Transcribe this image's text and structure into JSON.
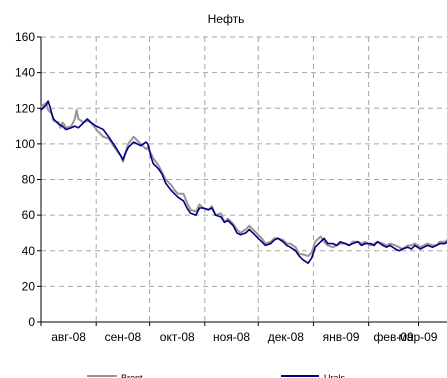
{
  "chart_data": {
    "type": "line",
    "title": "Нефть",
    "xlabel": "",
    "ylabel": "",
    "ylim": [
      0,
      160
    ],
    "yticks": [
      0,
      20,
      40,
      60,
      80,
      100,
      120,
      140,
      160
    ],
    "xticks": [
      "авг-08",
      "сен-08",
      "окт-08",
      "ноя-08",
      "дек-08",
      "янв-09",
      "фев-09",
      "мар-09"
    ],
    "xlim": [
      "2008-08-01",
      "2009-03-17"
    ],
    "grid": true,
    "legend_position": "bottom",
    "colors": {
      "Brent": "#969696",
      "Urals": "#000080"
    },
    "series": [
      {
        "name": "Brent",
        "points": [
          [
            "2008-08-01",
            121
          ],
          [
            "2008-08-04",
            123
          ],
          [
            "2008-08-05",
            119
          ],
          [
            "2008-08-07",
            117
          ],
          [
            "2008-08-08",
            113
          ],
          [
            "2008-08-11",
            112
          ],
          [
            "2008-08-12",
            109
          ],
          [
            "2008-08-13",
            112
          ],
          [
            "2008-08-14",
            111
          ],
          [
            "2008-08-15",
            109
          ],
          [
            "2008-08-18",
            110
          ],
          [
            "2008-08-19",
            112
          ],
          [
            "2008-08-20",
            114
          ],
          [
            "2008-08-21",
            119
          ],
          [
            "2008-08-22",
            114
          ],
          [
            "2008-08-25",
            112
          ],
          [
            "2008-08-27",
            113
          ],
          [
            "2008-08-29",
            112
          ],
          [
            "2008-09-02",
            107
          ],
          [
            "2008-09-04",
            105
          ],
          [
            "2008-09-05",
            104
          ],
          [
            "2008-09-08",
            103
          ],
          [
            "2008-09-10",
            100
          ],
          [
            "2008-09-12",
            97
          ],
          [
            "2008-09-15",
            93
          ],
          [
            "2008-09-16",
            90
          ],
          [
            "2008-09-17",
            93
          ],
          [
            "2008-09-18",
            97
          ],
          [
            "2008-09-19",
            100
          ],
          [
            "2008-09-22",
            104
          ],
          [
            "2008-09-23",
            103
          ],
          [
            "2008-09-25",
            101
          ],
          [
            "2008-09-26",
            100
          ],
          [
            "2008-09-29",
            97
          ],
          [
            "2008-09-30",
            98
          ],
          [
            "2008-10-02",
            94
          ],
          [
            "2008-10-03",
            92
          ],
          [
            "2008-10-06",
            88
          ],
          [
            "2008-10-08",
            84
          ],
          [
            "2008-10-10",
            80
          ],
          [
            "2008-10-13",
            77
          ],
          [
            "2008-10-15",
            74
          ],
          [
            "2008-10-17",
            72
          ],
          [
            "2008-10-20",
            72
          ],
          [
            "2008-10-22",
            67
          ],
          [
            "2008-10-24",
            63
          ],
          [
            "2008-10-27",
            62
          ],
          [
            "2008-10-29",
            66
          ],
          [
            "2008-10-31",
            64
          ],
          [
            "2008-11-03",
            63
          ],
          [
            "2008-11-05",
            65
          ],
          [
            "2008-11-07",
            60
          ],
          [
            "2008-11-10",
            61
          ],
          [
            "2008-11-12",
            56
          ],
          [
            "2008-11-14",
            58
          ],
          [
            "2008-11-17",
            55
          ],
          [
            "2008-11-19",
            52
          ],
          [
            "2008-11-21",
            50
          ],
          [
            "2008-11-24",
            52
          ],
          [
            "2008-11-26",
            54
          ],
          [
            "2008-11-28",
            52
          ],
          [
            "2008-12-01",
            49
          ],
          [
            "2008-12-03",
            47
          ],
          [
            "2008-12-05",
            44
          ],
          [
            "2008-12-08",
            45
          ],
          [
            "2008-12-10",
            47
          ],
          [
            "2008-12-12",
            47
          ],
          [
            "2008-12-15",
            46
          ],
          [
            "2008-12-17",
            44
          ],
          [
            "2008-12-19",
            44
          ],
          [
            "2008-12-22",
            42
          ],
          [
            "2008-12-24",
            38
          ],
          [
            "2008-12-26",
            38
          ],
          [
            "2008-12-29",
            37
          ],
          [
            "2008-12-31",
            39
          ],
          [
            "2009-01-02",
            45
          ],
          [
            "2009-01-05",
            48
          ],
          [
            "2009-01-07",
            45
          ],
          [
            "2009-01-09",
            43
          ],
          [
            "2009-01-12",
            42
          ],
          [
            "2009-01-14",
            43
          ],
          [
            "2009-01-16",
            44
          ],
          [
            "2009-01-19",
            44
          ],
          [
            "2009-01-21",
            43
          ],
          [
            "2009-01-23",
            45
          ],
          [
            "2009-01-26",
            45
          ],
          [
            "2009-01-28",
            44
          ],
          [
            "2009-01-30",
            45
          ],
          [
            "2009-02-02",
            43
          ],
          [
            "2009-02-04",
            44
          ],
          [
            "2009-02-06",
            45
          ],
          [
            "2009-02-09",
            44
          ],
          [
            "2009-02-11",
            43
          ],
          [
            "2009-02-13",
            44
          ],
          [
            "2009-02-16",
            43
          ],
          [
            "2009-02-18",
            42
          ],
          [
            "2009-02-20",
            41
          ],
          [
            "2009-02-23",
            43
          ],
          [
            "2009-02-25",
            43
          ],
          [
            "2009-02-27",
            44
          ],
          [
            "2009-03-02",
            42
          ],
          [
            "2009-03-04",
            43
          ],
          [
            "2009-03-06",
            44
          ],
          [
            "2009-03-09",
            43
          ],
          [
            "2009-03-11",
            43
          ],
          [
            "2009-03-13",
            45
          ],
          [
            "2009-03-16",
            45
          ],
          [
            "2009-03-17",
            46
          ]
        ]
      },
      {
        "name": "Urals",
        "points": [
          [
            "2008-08-01",
            119
          ],
          [
            "2008-08-04",
            122
          ],
          [
            "2008-08-05",
            124
          ],
          [
            "2008-08-06",
            121
          ],
          [
            "2008-08-07",
            117
          ],
          [
            "2008-08-08",
            114
          ],
          [
            "2008-08-11",
            111
          ],
          [
            "2008-08-13",
            110
          ],
          [
            "2008-08-15",
            108
          ],
          [
            "2008-08-18",
            109
          ],
          [
            "2008-08-20",
            110
          ],
          [
            "2008-08-22",
            109
          ],
          [
            "2008-08-25",
            112
          ],
          [
            "2008-08-27",
            114
          ],
          [
            "2008-08-29",
            112
          ],
          [
            "2008-09-01",
            110
          ],
          [
            "2008-09-03",
            109
          ],
          [
            "2008-09-05",
            108
          ],
          [
            "2008-09-08",
            104
          ],
          [
            "2008-09-10",
            101
          ],
          [
            "2008-09-12",
            98
          ],
          [
            "2008-09-15",
            93
          ],
          [
            "2008-09-16",
            91
          ],
          [
            "2008-09-17",
            94
          ],
          [
            "2008-09-19",
            98
          ],
          [
            "2008-09-22",
            101
          ],
          [
            "2008-09-24",
            100
          ],
          [
            "2008-09-26",
            99
          ],
          [
            "2008-09-29",
            101
          ],
          [
            "2008-09-30",
            100
          ],
          [
            "2008-10-02",
            92
          ],
          [
            "2008-10-03",
            89
          ],
          [
            "2008-10-06",
            86
          ],
          [
            "2008-10-08",
            83
          ],
          [
            "2008-10-10",
            78
          ],
          [
            "2008-10-13",
            74
          ],
          [
            "2008-10-15",
            72
          ],
          [
            "2008-10-17",
            70
          ],
          [
            "2008-10-20",
            68
          ],
          [
            "2008-10-22",
            64
          ],
          [
            "2008-10-24",
            61
          ],
          [
            "2008-10-27",
            60
          ],
          [
            "2008-10-29",
            64
          ],
          [
            "2008-10-31",
            64
          ],
          [
            "2008-11-03",
            63
          ],
          [
            "2008-11-05",
            64
          ],
          [
            "2008-11-07",
            60
          ],
          [
            "2008-11-10",
            59
          ],
          [
            "2008-11-12",
            56
          ],
          [
            "2008-11-14",
            57
          ],
          [
            "2008-11-17",
            54
          ],
          [
            "2008-11-19",
            50
          ],
          [
            "2008-11-21",
            49
          ],
          [
            "2008-11-24",
            50
          ],
          [
            "2008-11-26",
            52
          ],
          [
            "2008-11-28",
            50
          ],
          [
            "2008-12-01",
            47
          ],
          [
            "2008-12-03",
            45
          ],
          [
            "2008-12-05",
            43
          ],
          [
            "2008-12-08",
            44
          ],
          [
            "2008-12-10",
            46
          ],
          [
            "2008-12-12",
            47
          ],
          [
            "2008-12-15",
            45
          ],
          [
            "2008-12-17",
            43
          ],
          [
            "2008-12-19",
            42
          ],
          [
            "2008-12-22",
            40
          ],
          [
            "2008-12-24",
            37
          ],
          [
            "2008-12-26",
            35
          ],
          [
            "2008-12-29",
            33
          ],
          [
            "2008-12-31",
            36
          ],
          [
            "2009-01-02",
            42
          ],
          [
            "2009-01-05",
            45
          ],
          [
            "2009-01-07",
            47
          ],
          [
            "2009-01-09",
            44
          ],
          [
            "2009-01-12",
            44
          ],
          [
            "2009-01-14",
            43
          ],
          [
            "2009-01-16",
            45
          ],
          [
            "2009-01-19",
            44
          ],
          [
            "2009-01-21",
            43
          ],
          [
            "2009-01-23",
            44
          ],
          [
            "2009-01-26",
            45
          ],
          [
            "2009-01-28",
            43
          ],
          [
            "2009-01-30",
            44
          ],
          [
            "2009-02-02",
            44
          ],
          [
            "2009-02-04",
            43
          ],
          [
            "2009-02-06",
            45
          ],
          [
            "2009-02-09",
            43
          ],
          [
            "2009-02-11",
            42
          ],
          [
            "2009-02-13",
            43
          ],
          [
            "2009-02-16",
            41
          ],
          [
            "2009-02-18",
            40
          ],
          [
            "2009-02-20",
            41
          ],
          [
            "2009-02-23",
            42
          ],
          [
            "2009-02-25",
            41
          ],
          [
            "2009-02-27",
            43
          ],
          [
            "2009-03-02",
            41
          ],
          [
            "2009-03-04",
            42
          ],
          [
            "2009-03-06",
            43
          ],
          [
            "2009-03-09",
            42
          ],
          [
            "2009-03-11",
            43
          ],
          [
            "2009-03-13",
            44
          ],
          [
            "2009-03-16",
            44
          ],
          [
            "2009-03-17",
            45
          ]
        ]
      }
    ]
  }
}
